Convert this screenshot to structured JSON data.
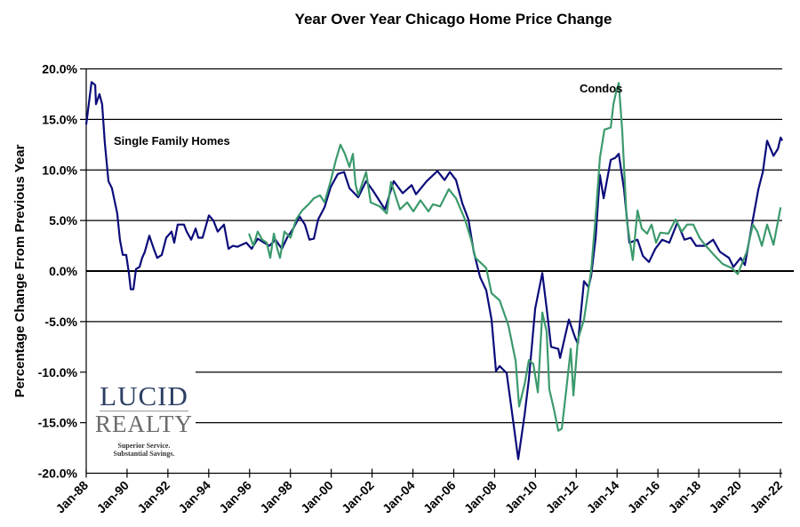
{
  "chart_data": {
    "type": "line",
    "title": "Year Over Year Chicago Home Price Change",
    "xlabel": "",
    "ylabel": "Percentage Change From Previous Year",
    "ylim": [
      -20,
      20
    ],
    "xlim": [
      1988,
      2022.6
    ],
    "y_ticks": [
      "20.0%",
      "15.0%",
      "10.0%",
      "5.0%",
      "0.0%",
      "-5.0%",
      "-10.0%",
      "-15.0%",
      "-20.0%"
    ],
    "y_tick_values": [
      20,
      15,
      10,
      5,
      0,
      -5,
      -10,
      -15,
      -20
    ],
    "x_ticks": [
      "Jan-88",
      "Jan-90",
      "Jan-92",
      "Jan-94",
      "Jan-96",
      "Jan-98",
      "Jan-00",
      "Jan-02",
      "Jan-04",
      "Jan-06",
      "Jan-08",
      "Jan-10",
      "Jan-12",
      "Jan-14",
      "Jan-16",
      "Jan-18",
      "Jan-20",
      "Jan-22"
    ],
    "x_tick_values": [
      1988,
      1990,
      1992,
      1994,
      1996,
      1998,
      2000,
      2002,
      2004,
      2006,
      2008,
      2010,
      2012,
      2014,
      2016,
      2018,
      2020,
      2022
    ],
    "grid": true,
    "legend": "none",
    "annotations": [
      {
        "text": "Single Family Homes",
        "series": 0
      },
      {
        "text": "Condos",
        "series": 1
      }
    ],
    "series": [
      {
        "name": "Single Family Homes",
        "color": "#0b0b7a",
        "points": [
          [
            1988.0,
            14.5
          ],
          [
            1988.26,
            18.7
          ],
          [
            1988.44,
            18.4
          ],
          [
            1988.48,
            16.5
          ],
          [
            1988.65,
            17.5
          ],
          [
            1988.78,
            16.5
          ],
          [
            1988.91,
            12.7
          ],
          [
            1989.09,
            8.9
          ],
          [
            1989.26,
            8.2
          ],
          [
            1989.52,
            5.7
          ],
          [
            1989.65,
            3.1
          ],
          [
            1989.79,
            1.6
          ],
          [
            1989.96,
            1.6
          ],
          [
            1990.09,
            -0.2
          ],
          [
            1990.18,
            -1.8
          ],
          [
            1990.31,
            -1.8
          ],
          [
            1990.44,
            0.2
          ],
          [
            1990.61,
            0.4
          ],
          [
            1990.74,
            1.3
          ],
          [
            1990.87,
            1.9
          ],
          [
            1991.09,
            3.5
          ],
          [
            1991.31,
            2.2
          ],
          [
            1991.48,
            1.3
          ],
          [
            1991.7,
            1.6
          ],
          [
            1991.92,
            3.3
          ],
          [
            1992.18,
            3.9
          ],
          [
            1992.31,
            2.8
          ],
          [
            1992.48,
            4.6
          ],
          [
            1992.79,
            4.6
          ],
          [
            1992.92,
            3.9
          ],
          [
            1993.14,
            3.1
          ],
          [
            1993.36,
            4.2
          ],
          [
            1993.49,
            3.3
          ],
          [
            1993.7,
            3.3
          ],
          [
            1994.01,
            5.5
          ],
          [
            1994.23,
            5.0
          ],
          [
            1994.44,
            3.9
          ],
          [
            1994.75,
            4.6
          ],
          [
            1994.97,
            2.2
          ],
          [
            1995.18,
            2.5
          ],
          [
            1995.4,
            2.4
          ],
          [
            1995.62,
            2.6
          ],
          [
            1995.84,
            2.8
          ],
          [
            1996.1,
            2.2
          ],
          [
            1996.4,
            3.2
          ],
          [
            1996.71,
            2.8
          ],
          [
            1996.97,
            2.5
          ],
          [
            1997.27,
            3.1
          ],
          [
            1997.58,
            2.2
          ],
          [
            1997.84,
            3.3
          ],
          [
            1998.14,
            4.2
          ],
          [
            1998.45,
            5.4
          ],
          [
            1998.71,
            4.6
          ],
          [
            1998.93,
            3.1
          ],
          [
            1999.15,
            3.2
          ],
          [
            1999.36,
            5.1
          ],
          [
            1999.67,
            6.3
          ],
          [
            1999.97,
            8.3
          ],
          [
            2000.32,
            9.6
          ],
          [
            2000.63,
            9.8
          ],
          [
            2000.89,
            8.2
          ],
          [
            2001.32,
            7.3
          ],
          [
            2001.71,
            8.9
          ],
          [
            2002.06,
            7.9
          ],
          [
            2002.63,
            6.1
          ],
          [
            2003.06,
            8.9
          ],
          [
            2003.5,
            7.7
          ],
          [
            2003.94,
            8.5
          ],
          [
            2004.15,
            7.6
          ],
          [
            2004.68,
            8.9
          ],
          [
            2005.2,
            9.9
          ],
          [
            2005.55,
            9.0
          ],
          [
            2005.81,
            9.8
          ],
          [
            2006.11,
            9.0
          ],
          [
            2006.42,
            6.7
          ],
          [
            2006.72,
            5.1
          ],
          [
            2006.98,
            1.9
          ],
          [
            2007.29,
            -0.6
          ],
          [
            2007.59,
            -1.9
          ],
          [
            2007.85,
            -4.8
          ],
          [
            2008.07,
            -9.9
          ],
          [
            2008.25,
            -9.4
          ],
          [
            2008.59,
            -10.1
          ],
          [
            2008.9,
            -14.7
          ],
          [
            2009.16,
            -18.6
          ],
          [
            2009.47,
            -14.2
          ],
          [
            2009.68,
            -10.7
          ],
          [
            2009.99,
            -3.7
          ],
          [
            2010.34,
            -0.2
          ],
          [
            2010.55,
            -3.7
          ],
          [
            2010.77,
            -7.5
          ],
          [
            2011.12,
            -7.7
          ],
          [
            2011.21,
            -8.6
          ],
          [
            2011.64,
            -4.8
          ],
          [
            2011.95,
            -6.6
          ],
          [
            2012.08,
            -7.2
          ],
          [
            2012.38,
            -1.0
          ],
          [
            2012.6,
            -1.6
          ],
          [
            2012.73,
            -0.5
          ],
          [
            2012.95,
            3.3
          ],
          [
            2013.16,
            9.5
          ],
          [
            2013.34,
            7.2
          ],
          [
            2013.69,
            11.0
          ],
          [
            2013.91,
            11.2
          ],
          [
            2014.08,
            11.6
          ],
          [
            2014.34,
            8.1
          ],
          [
            2014.6,
            2.8
          ],
          [
            2015.0,
            3.1
          ],
          [
            2015.26,
            1.5
          ],
          [
            2015.56,
            0.9
          ],
          [
            2015.87,
            2.2
          ],
          [
            2016.21,
            3.1
          ],
          [
            2016.56,
            2.8
          ],
          [
            2016.95,
            4.8
          ],
          [
            2017.3,
            3.1
          ],
          [
            2017.61,
            3.3
          ],
          [
            2017.87,
            2.5
          ],
          [
            2018.3,
            2.5
          ],
          [
            2018.7,
            3.1
          ],
          [
            2019.04,
            1.9
          ],
          [
            2019.48,
            1.3
          ],
          [
            2019.7,
            0.4
          ],
          [
            2020.05,
            1.3
          ],
          [
            2020.26,
            0.6
          ],
          [
            2020.65,
            5.1
          ],
          [
            2020.92,
            8.1
          ],
          [
            2021.14,
            9.8
          ],
          [
            2021.35,
            12.9
          ],
          [
            2021.66,
            11.4
          ],
          [
            2021.88,
            12.1
          ],
          [
            2022.01,
            13.2
          ],
          [
            2022.09,
            12.9
          ]
        ]
      },
      {
        "name": "Condos",
        "color": "#3c9a6c",
        "points": [
          [
            1995.97,
            3.7
          ],
          [
            1996.19,
            2.5
          ],
          [
            1996.4,
            3.9
          ],
          [
            1996.62,
            3.1
          ],
          [
            1996.84,
            2.8
          ],
          [
            1997.01,
            1.3
          ],
          [
            1997.19,
            3.7
          ],
          [
            1997.36,
            2.2
          ],
          [
            1997.49,
            1.3
          ],
          [
            1997.71,
            3.9
          ],
          [
            1998.01,
            3.3
          ],
          [
            1998.28,
            5.1
          ],
          [
            1998.58,
            6.0
          ],
          [
            1998.89,
            6.6
          ],
          [
            1999.15,
            7.2
          ],
          [
            1999.45,
            7.5
          ],
          [
            1999.67,
            6.8
          ],
          [
            1999.97,
            8.9
          ],
          [
            2000.23,
            11.0
          ],
          [
            2000.45,
            12.5
          ],
          [
            2000.67,
            11.6
          ],
          [
            2000.89,
            10.3
          ],
          [
            2001.06,
            11.6
          ],
          [
            2001.19,
            8.6
          ],
          [
            2001.32,
            7.5
          ],
          [
            2001.71,
            9.8
          ],
          [
            2001.93,
            6.8
          ],
          [
            2002.37,
            6.4
          ],
          [
            2002.72,
            5.7
          ],
          [
            2002.93,
            8.8
          ],
          [
            2003.37,
            6.1
          ],
          [
            2003.72,
            6.8
          ],
          [
            2004.02,
            5.9
          ],
          [
            2004.37,
            7.0
          ],
          [
            2004.76,
            5.9
          ],
          [
            2004.98,
            6.6
          ],
          [
            2005.33,
            6.4
          ],
          [
            2005.76,
            8.1
          ],
          [
            2006.11,
            7.2
          ],
          [
            2006.55,
            5.1
          ],
          [
            2006.85,
            3.1
          ],
          [
            2007.07,
            1.3
          ],
          [
            2007.59,
            0.3
          ],
          [
            2007.85,
            -2.2
          ],
          [
            2008.25,
            -2.9
          ],
          [
            2008.68,
            -5.4
          ],
          [
            2009.03,
            -8.9
          ],
          [
            2009.2,
            -13.4
          ],
          [
            2009.47,
            -11.2
          ],
          [
            2009.68,
            -8.8
          ],
          [
            2009.9,
            -9.2
          ],
          [
            2010.12,
            -12.0
          ],
          [
            2010.34,
            -4.1
          ],
          [
            2010.55,
            -6.0
          ],
          [
            2010.68,
            -11.7
          ],
          [
            2010.9,
            -13.6
          ],
          [
            2011.12,
            -15.8
          ],
          [
            2011.29,
            -15.6
          ],
          [
            2011.51,
            -11.8
          ],
          [
            2011.73,
            -7.7
          ],
          [
            2011.86,
            -12.3
          ],
          [
            2012.08,
            -6.8
          ],
          [
            2012.38,
            -4.8
          ],
          [
            2012.73,
            0.0
          ],
          [
            2012.95,
            5.4
          ],
          [
            2013.16,
            11.2
          ],
          [
            2013.38,
            14.0
          ],
          [
            2013.69,
            14.2
          ],
          [
            2013.82,
            16.5
          ],
          [
            2013.95,
            17.7
          ],
          [
            2014.08,
            18.6
          ],
          [
            2014.25,
            13.9
          ],
          [
            2014.47,
            5.1
          ],
          [
            2014.77,
            1.1
          ],
          [
            2015.0,
            6.0
          ],
          [
            2015.21,
            4.2
          ],
          [
            2015.47,
            3.7
          ],
          [
            2015.69,
            4.6
          ],
          [
            2015.91,
            2.8
          ],
          [
            2016.12,
            3.8
          ],
          [
            2016.51,
            3.7
          ],
          [
            2016.86,
            5.1
          ],
          [
            2017.17,
            3.9
          ],
          [
            2017.43,
            4.6
          ],
          [
            2017.73,
            4.6
          ],
          [
            2018.04,
            3.3
          ],
          [
            2018.3,
            2.6
          ],
          [
            2018.74,
            1.6
          ],
          [
            2019.17,
            0.7
          ],
          [
            2019.61,
            0.3
          ],
          [
            2019.91,
            -0.3
          ],
          [
            2020.35,
            1.9
          ],
          [
            2020.65,
            4.6
          ],
          [
            2020.87,
            3.9
          ],
          [
            2021.09,
            2.5
          ],
          [
            2021.35,
            4.6
          ],
          [
            2021.66,
            2.6
          ],
          [
            2022.01,
            6.3
          ]
        ]
      }
    ]
  },
  "logo": {
    "line1": "LUCID",
    "line2": "REALTY",
    "tagline1": "Superior Service.",
    "tagline2": "Substantial Savings."
  }
}
